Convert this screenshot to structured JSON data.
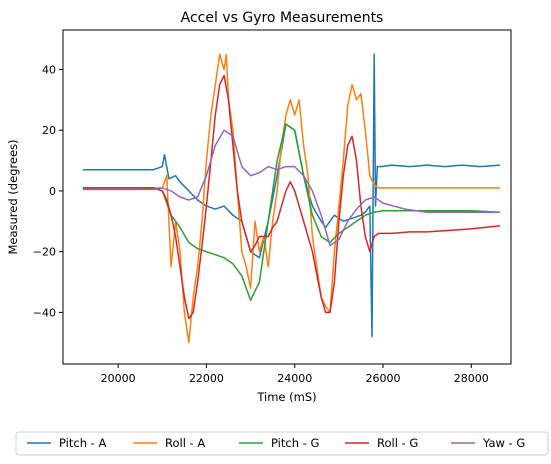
{
  "chart_data": {
    "type": "line",
    "title": "Accel vs Gyro Measurements",
    "xlabel": "Time (mS)",
    "ylabel": "Measured (degrees)",
    "xlim": [
      18750,
      28900
    ],
    "ylim": [
      -57,
      53
    ],
    "xticks": [
      20000,
      22000,
      24000,
      26000,
      28000
    ],
    "yticks": [
      -40,
      -20,
      0,
      20,
      40
    ],
    "xtick_labels": [
      "20000",
      "22000",
      "24000",
      "26000",
      "28000"
    ],
    "ytick_labels": [
      "−40",
      "−20",
      "0",
      "20",
      "40"
    ],
    "grid": false,
    "legend_position": "bottom, below plot",
    "series": [
      {
        "name": "Pitch - A",
        "color": "#1f77b4",
        "x": [
          19200,
          19600,
          20000,
          20400,
          20800,
          21000,
          21050,
          21150,
          21300,
          21400,
          21600,
          21800,
          22000,
          22200,
          22400,
          22600,
          22800,
          23000,
          23200,
          23400,
          23600,
          23800,
          24000,
          24200,
          24400,
          24600,
          24700,
          24900,
          25100,
          25300,
          25500,
          25600,
          25700,
          25750,
          25800,
          25830,
          25870,
          25950,
          26200,
          26600,
          27000,
          27400,
          27800,
          28200,
          28650
        ],
        "y": [
          7,
          7,
          7,
          7,
          7,
          8,
          12,
          4,
          5,
          3,
          0,
          -3,
          -5,
          -6,
          -5,
          -8,
          -10,
          -20,
          -22,
          -10,
          5,
          22,
          20,
          5,
          -5,
          -10,
          -12,
          -8,
          -10,
          -9,
          -8,
          -7,
          -5,
          -48,
          45,
          -5,
          8,
          8,
          8.5,
          8,
          8.5,
          8,
          8.5,
          8,
          8.5
        ]
      },
      {
        "name": "Roll - A",
        "color": "#ff7f0e",
        "x": [
          19200,
          19600,
          20000,
          20400,
          20800,
          21000,
          21100,
          21200,
          21300,
          21400,
          21500,
          21600,
          21700,
          21800,
          21900,
          22000,
          22100,
          22200,
          22300,
          22400,
          22450,
          22500,
          22600,
          22700,
          22800,
          22900,
          23000,
          23100,
          23200,
          23300,
          23400,
          23500,
          23600,
          23700,
          23800,
          23900,
          24000,
          24100,
          24200,
          24300,
          24400,
          24500,
          24600,
          24700,
          24800,
          24900,
          25000,
          25100,
          25200,
          25300,
          25400,
          25500,
          25600,
          25700,
          25800,
          25900,
          26000,
          26400,
          26800,
          27200,
          27600,
          28000,
          28650
        ],
        "y": [
          1,
          1,
          1,
          1,
          1,
          1,
          5,
          -25,
          -10,
          -20,
          -40,
          -50,
          -35,
          -25,
          -10,
          10,
          25,
          35,
          45,
          40,
          45,
          30,
          20,
          0,
          -20,
          -25,
          -32,
          -10,
          -20,
          -15,
          -25,
          -10,
          0,
          15,
          25,
          30,
          25,
          30,
          15,
          5,
          -15,
          -25,
          -35,
          -38,
          -40,
          -20,
          -5,
          10,
          28,
          35,
          30,
          32,
          20,
          5,
          2,
          1,
          1,
          1,
          1,
          1,
          1,
          1,
          1
        ]
      },
      {
        "name": "Pitch - G",
        "color": "#2ca02c",
        "x": [
          19200,
          19600,
          20000,
          20400,
          20800,
          21000,
          21200,
          21400,
          21600,
          21800,
          22000,
          22200,
          22400,
          22600,
          22800,
          23000,
          23200,
          23400,
          23600,
          23800,
          24000,
          24200,
          24400,
          24600,
          24800,
          25000,
          25200,
          25400,
          25600,
          25800,
          26000,
          26500,
          27000,
          27500,
          28000,
          28650
        ],
        "y": [
          0.5,
          0.5,
          0.5,
          0.5,
          1,
          0,
          -8,
          -12,
          -17,
          -19,
          -20,
          -21,
          -22,
          -24,
          -28,
          -36,
          -30,
          -10,
          10,
          22,
          20,
          5,
          -8,
          -15,
          -17,
          -14,
          -12,
          -10,
          -8,
          -7,
          -6.5,
          -6.5,
          -6.5,
          -6.5,
          -6.5,
          -7
        ]
      },
      {
        "name": "Roll - G",
        "color": "#d62728",
        "x": [
          19200,
          19600,
          20000,
          20400,
          20800,
          21000,
          21100,
          21200,
          21300,
          21400,
          21500,
          21600,
          21700,
          21800,
          21900,
          22000,
          22100,
          22200,
          22300,
          22400,
          22500,
          22600,
          22700,
          22800,
          22900,
          23000,
          23100,
          23200,
          23300,
          23400,
          23500,
          23600,
          23700,
          23800,
          23900,
          24000,
          24200,
          24400,
          24600,
          24700,
          24800,
          24900,
          25000,
          25100,
          25200,
          25300,
          25400,
          25500,
          25600,
          25700,
          25800,
          25900,
          26200,
          26600,
          27000,
          27500,
          28000,
          28650
        ],
        "y": [
          1,
          1,
          1,
          1,
          1,
          0,
          -3,
          -8,
          -15,
          -25,
          -35,
          -42,
          -40,
          -30,
          -18,
          -5,
          10,
          25,
          35,
          38,
          30,
          15,
          0,
          -10,
          -15,
          -20,
          -18,
          -15,
          -15,
          -15,
          -12,
          -10,
          -5,
          0,
          3,
          0,
          -10,
          -20,
          -35,
          -40,
          -40,
          -30,
          -10,
          5,
          15,
          18,
          10,
          -5,
          -15,
          -20,
          -15,
          -14,
          -14,
          -13.5,
          -13.5,
          -13,
          -12.5,
          -11.5
        ]
      },
      {
        "name": "Yaw - G",
        "color": "#9467bd",
        "x": [
          19200,
          19600,
          20000,
          20400,
          20800,
          21000,
          21200,
          21400,
          21600,
          21800,
          22000,
          22200,
          22400,
          22600,
          22800,
          23000,
          23200,
          23400,
          23600,
          23800,
          24000,
          24200,
          24400,
          24600,
          24800,
          25000,
          25200,
          25400,
          25600,
          25800,
          26000,
          26500,
          27000,
          27500,
          28000,
          28650
        ],
        "y": [
          0.5,
          0.5,
          0.5,
          0.5,
          0.5,
          1,
          0,
          -2,
          -3,
          -2,
          5,
          15,
          20,
          18,
          8,
          5,
          6,
          8,
          7,
          8,
          8,
          5,
          0,
          -8,
          -18,
          -16,
          -10,
          -6,
          -3,
          -2,
          -4,
          -6,
          -7,
          -7,
          -7,
          -7
        ]
      }
    ]
  }
}
